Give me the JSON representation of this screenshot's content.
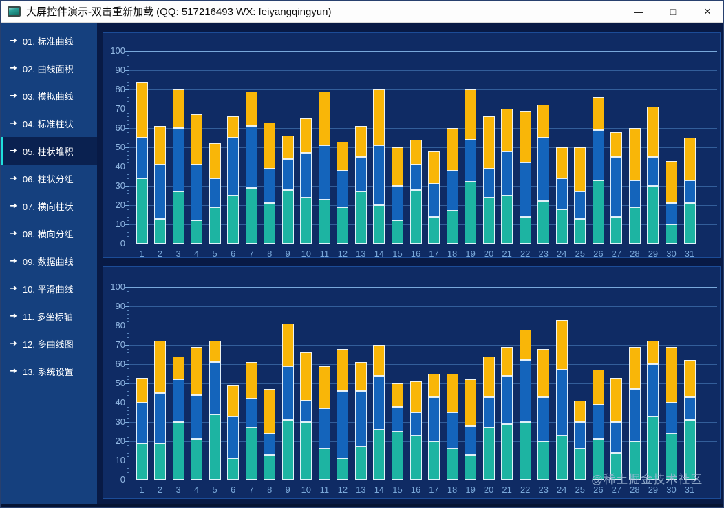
{
  "window": {
    "title": "大屏控件演示-双击重新加载 (QQ: 517216493  WX: feiyangqingyun)",
    "minimize_glyph": "—",
    "maximize_glyph": "□",
    "close_glyph": "×"
  },
  "sidebar": {
    "selected_index": 4,
    "arrow_glyph": "➜",
    "items": [
      "01. 标准曲线",
      "02. 曲线面积",
      "03. 模拟曲线",
      "04. 标准柱状",
      "05. 柱状堆积",
      "06. 柱状分组",
      "07. 横向柱状",
      "08. 横向分组",
      "09. 数据曲线",
      "10. 平滑曲线",
      "11. 多坐标轴",
      "12. 多曲线图",
      "13. 系统设置"
    ]
  },
  "watermark": "@稀土掘金技术社区",
  "colors": {
    "teal": "#1db4a2",
    "blue": "#1464bb",
    "yellow": "#f9b608",
    "accent": "#1fe0dd",
    "panel_bg": "#0f2b64",
    "sidebar_bg": "#15407e"
  },
  "chart_data": [
    {
      "type": "bar",
      "stacked": true,
      "title": "",
      "xlabel": "",
      "ylabel": "",
      "ylim": [
        0,
        100
      ],
      "ytick_step": 10,
      "grid": true,
      "legend": false,
      "categories": [
        "1",
        "2",
        "3",
        "4",
        "5",
        "6",
        "7",
        "8",
        "9",
        "10",
        "11",
        "12",
        "13",
        "14",
        "15",
        "16",
        "17",
        "18",
        "19",
        "20",
        "21",
        "22",
        "23",
        "24",
        "25",
        "26",
        "27",
        "28",
        "29",
        "30",
        "31"
      ],
      "series": [
        {
          "name": "teal-segment",
          "color": "#1db4a2",
          "values": [
            34,
            13,
            27,
            12,
            19,
            25,
            29,
            21,
            28,
            24,
            23,
            19,
            27,
            20,
            12,
            28,
            14,
            17,
            32,
            24,
            25,
            14,
            22,
            18,
            13,
            33,
            14,
            19,
            30,
            10,
            21
          ]
        },
        {
          "name": "blue-segment",
          "color": "#1464bb",
          "values": [
            21,
            28,
            33,
            29,
            15,
            30,
            32,
            18,
            16,
            23,
            28,
            19,
            18,
            31,
            18,
            13,
            17,
            21,
            22,
            15,
            23,
            28,
            33,
            16,
            14,
            26,
            31,
            14,
            15,
            11,
            12
          ]
        },
        {
          "name": "yellow-segment",
          "color": "#f9b608",
          "values": [
            29,
            20,
            20,
            26,
            18,
            11,
            18,
            24,
            12,
            18,
            28,
            15,
            16,
            29,
            20,
            13,
            17,
            22,
            26,
            27,
            22,
            27,
            17,
            16,
            23,
            17,
            13,
            27,
            26,
            22,
            22
          ]
        }
      ]
    },
    {
      "type": "bar",
      "stacked": true,
      "title": "",
      "xlabel": "",
      "ylabel": "",
      "ylim": [
        0,
        100
      ],
      "ytick_step": 10,
      "grid": true,
      "legend": false,
      "categories": [
        "1",
        "2",
        "3",
        "4",
        "5",
        "6",
        "7",
        "8",
        "9",
        "10",
        "11",
        "12",
        "13",
        "14",
        "15",
        "16",
        "17",
        "18",
        "19",
        "20",
        "21",
        "22",
        "23",
        "24",
        "25",
        "26",
        "27",
        "28",
        "29",
        "30",
        "31"
      ],
      "series": [
        {
          "name": "teal-segment",
          "color": "#1db4a2",
          "values": [
            19,
            19,
            30,
            21,
            34,
            11,
            27,
            13,
            31,
            30,
            16,
            11,
            17,
            26,
            25,
            23,
            20,
            16,
            13,
            27,
            29,
            30,
            20,
            23,
            16,
            21,
            14,
            20,
            33,
            24,
            31
          ]
        },
        {
          "name": "blue-segment",
          "color": "#1464bb",
          "values": [
            21,
            26,
            22,
            23,
            27,
            22,
            15,
            11,
            28,
            11,
            21,
            35,
            29,
            28,
            13,
            12,
            23,
            19,
            15,
            16,
            25,
            32,
            23,
            34,
            14,
            18,
            16,
            27,
            27,
            16,
            12
          ]
        },
        {
          "name": "yellow-segment",
          "color": "#f9b608",
          "values": [
            13,
            27,
            12,
            25,
            11,
            16,
            19,
            23,
            22,
            25,
            22,
            22,
            15,
            16,
            12,
            16,
            12,
            20,
            24,
            21,
            15,
            16,
            25,
            26,
            11,
            18,
            23,
            22,
            12,
            29,
            19
          ]
        }
      ]
    }
  ]
}
